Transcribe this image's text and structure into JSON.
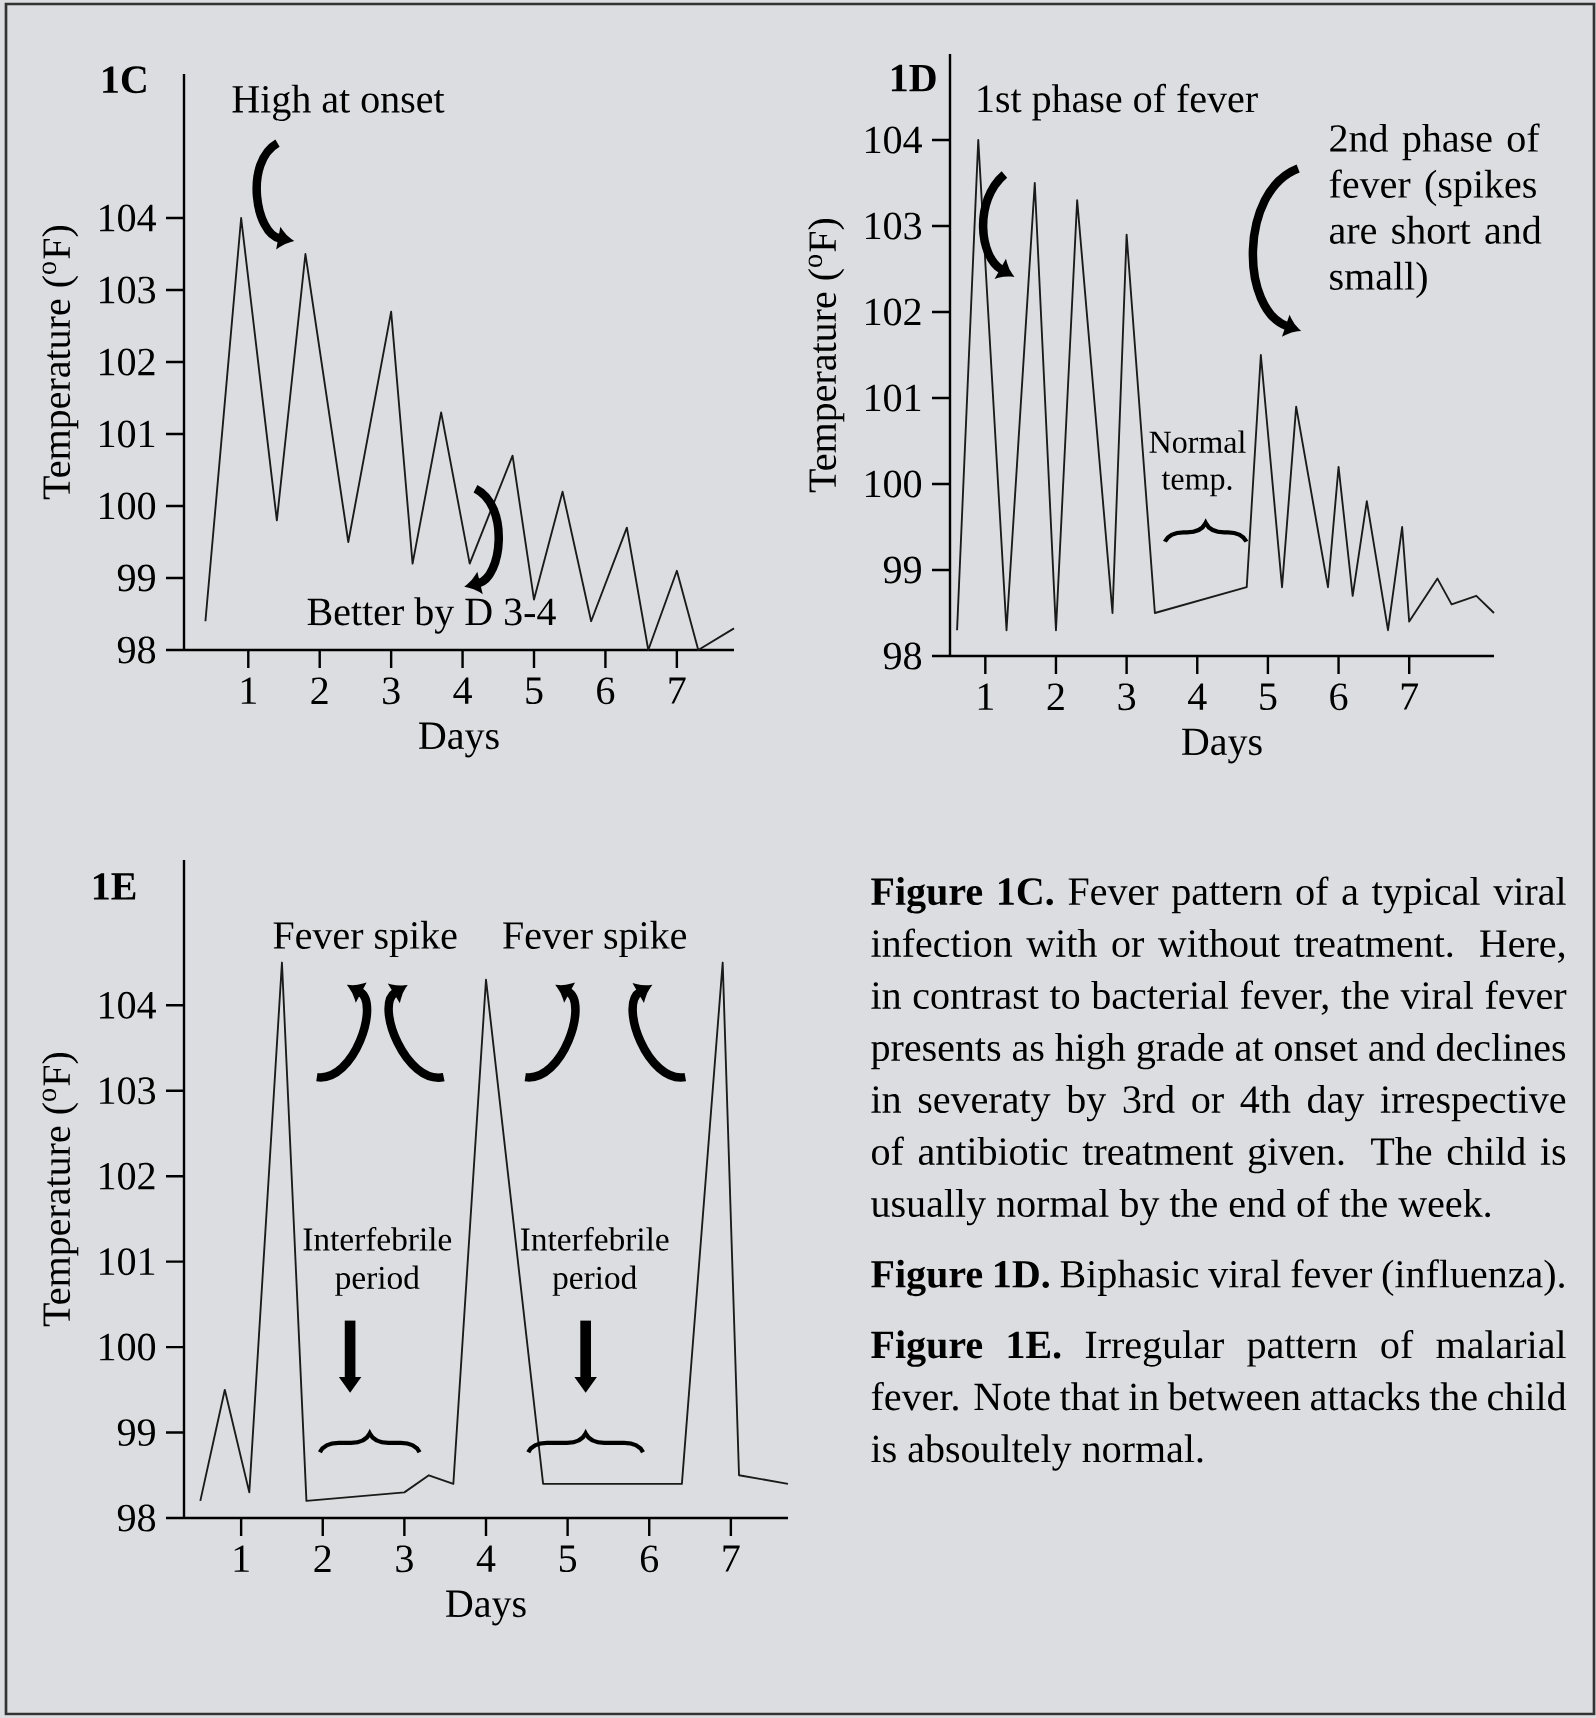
{
  "chart_data": [
    {
      "type": "line",
      "title": "1C",
      "xlabel": "Days",
      "ylabel": "Temperature ($^{o}$F)",
      "color": "#1a1a1a",
      "x": [
        0.4,
        0.9,
        1.4,
        1.8,
        2.4,
        3.0,
        3.3,
        3.7,
        4.1,
        4.7,
        5.0,
        5.4,
        5.8,
        6.3,
        6.6,
        7.0,
        7.3,
        7.8
      ],
      "values": [
        98.4,
        104.0,
        99.8,
        103.5,
        99.5,
        102.7,
        99.2,
        101.3,
        99.2,
        100.7,
        98.7,
        100.2,
        98.4,
        99.7,
        98.0,
        99.1,
        98.0,
        98.3
      ],
      "xlim": [
        0.1,
        7.8
      ],
      "ylim": [
        98,
        106
      ],
      "xticks": [
        1,
        2,
        3,
        4,
        5,
        6,
        7
      ],
      "yticks": [
        98,
        99,
        100,
        101,
        102,
        103,
        104
      ],
      "annotations": [
        "High at onset",
        "Better by D 3-4"
      ]
    },
    {
      "type": "line",
      "title": "1D",
      "xlabel": "Days",
      "ylabel": "Temperature ($^{o}$F)",
      "color": "#1a1a1a",
      "x": [
        0.6,
        0.9,
        1.3,
        1.7,
        2.0,
        2.3,
        2.8,
        3.0,
        3.4,
        4.7,
        4.9,
        5.2,
        5.4,
        5.85,
        6.0,
        6.2,
        6.4,
        6.7,
        6.9,
        7.0,
        7.4,
        7.6,
        7.95,
        8.2
      ],
      "values": [
        98.3,
        104.0,
        98.3,
        103.5,
        98.3,
        103.3,
        98.5,
        102.9,
        98.5,
        98.8,
        101.5,
        98.8,
        100.9,
        98.8,
        100.2,
        98.7,
        99.8,
        98.3,
        99.5,
        98.4,
        98.9,
        98.6,
        98.7,
        98.5
      ],
      "xlim": [
        0.5,
        8.2
      ],
      "ylim": [
        98,
        105
      ],
      "xticks": [
        1,
        2,
        3,
        4,
        5,
        6,
        7
      ],
      "yticks": [
        98,
        99,
        100,
        101,
        102,
        103,
        104
      ],
      "annotations": [
        "1st phase of fever",
        "2nd phase of fever (spikes are short and small)",
        "Normal temp."
      ]
    },
    {
      "type": "line",
      "title": "1E",
      "xlabel": "Days",
      "ylabel": "Temperature ($^{o}$F)",
      "color": "#1a1a1a",
      "x": [
        0.5,
        0.8,
        1.1,
        1.5,
        1.8,
        3.0,
        3.3,
        3.6,
        4.0,
        4.7,
        6.4,
        6.9,
        7.1,
        7.7
      ],
      "values": [
        98.2,
        99.5,
        98.3,
        104.5,
        98.2,
        98.3,
        98.5,
        98.4,
        104.3,
        98.4,
        98.4,
        104.5,
        98.5,
        98.4
      ],
      "xlim": [
        0.3,
        7.7
      ],
      "ylim": [
        98,
        105.7
      ],
      "xticks": [
        1,
        2,
        3,
        4,
        5,
        6,
        7
      ],
      "yticks": [
        98,
        99,
        100,
        101,
        102,
        103,
        104
      ],
      "annotations": [
        "Fever spike",
        "Fever spike",
        "Interfebrile period",
        "Interfebrile period"
      ]
    },
    {
      "type": "other",
      "annotations": [
        "**Figure 1C.** Fever pattern of a typical viral infection with or without treatment. Here, in contrast to bacterial fever, the  viral fever presents as high grade at onset and declines in severaty by 3rd or 4th day irrespective of antibiotic treatment given. The child is usually normal by the end of the week.",
        "**Figure 1D.** Biphasic viral fever (influenza).",
        "**Figure 1E.** Irregular pattern of malarial fever. Note that in between attacks the child is absoultely normal."
      ]
    }
  ]
}
